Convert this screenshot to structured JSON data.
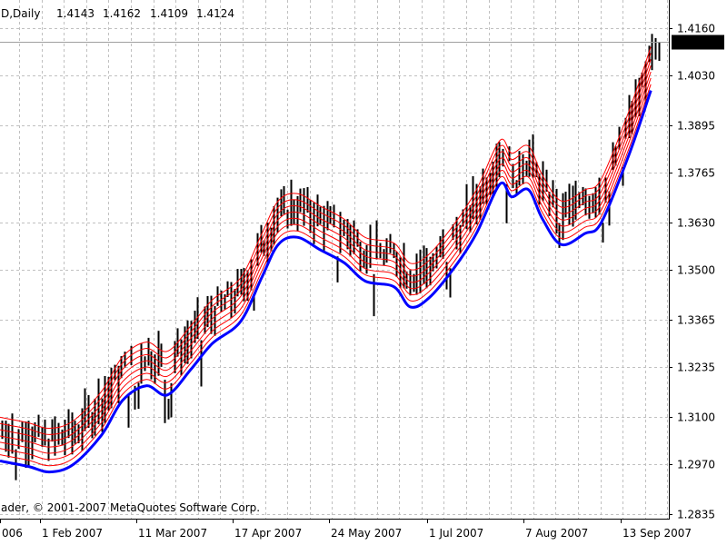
{
  "header": {
    "symbol_period": "D,Daily",
    "open": "1.4143",
    "high": "1.4162",
    "low": "1.4109",
    "close": "1.4124"
  },
  "copyright": "ader, © 2001-2007 MetaQuotes Software Corp.",
  "colors": {
    "background": "#ffffff",
    "grid": "#c0c0c0",
    "bars": "#000000",
    "ma_main": "#0000ff",
    "envelope": "#ff0000",
    "price_line": "#a0a0a0",
    "price_tag_bg": "#000000",
    "price_tag_text": "#ffffff"
  },
  "chart_data": {
    "type": "line",
    "title": "",
    "xlabel": "",
    "ylabel": "",
    "ylim": [
      1.2815,
      1.4185
    ],
    "y_ticks": [
      "1.4160",
      "1.4030",
      "1.3895",
      "1.3765",
      "1.3630",
      "1.3500",
      "1.3365",
      "1.3235",
      "1.3100",
      "1.2970",
      "1.2835"
    ],
    "x_tick_labels": [
      "006",
      "1 Feb 2007",
      "11 Mar 2007",
      "17 Apr 2007",
      "24 May 2007",
      "1 Jul 2007",
      "7 Aug 2007",
      "13 Sep 2007"
    ],
    "current_price": "1.4124",
    "grid": true,
    "series": [
      {
        "style": "thick blue line",
        "points": [
          [
            "20 Dec 2006",
            1.298
          ],
          [
            "1 Jan 2007",
            1.2965
          ],
          [
            "10 Jan 2007",
            1.295
          ],
          [
            "20 Jan 2007",
            1.297
          ],
          [
            "1 Feb 2007",
            1.305
          ],
          [
            "10 Feb 2007",
            1.3145
          ],
          [
            "20 Feb 2007",
            1.3185
          ],
          [
            "1 Mar 2007",
            1.316
          ],
          [
            "11 Mar 2007",
            1.323
          ],
          [
            "20 Mar 2007",
            1.33
          ],
          [
            "1 Apr 2007",
            1.336
          ],
          [
            "10 Apr 2007",
            1.348
          ],
          [
            "17 Apr 2007",
            1.357
          ],
          [
            "25 Apr 2007",
            1.359
          ],
          [
            "5 May 2007",
            1.3555
          ],
          [
            "15 May 2007",
            1.352
          ],
          [
            "24 May 2007",
            1.347
          ],
          [
            "5 Jun 2007",
            1.3455
          ],
          [
            "12 Jun 2007",
            1.34
          ],
          [
            "20 Jun 2007",
            1.3425
          ],
          [
            "1 Jul 2007",
            1.351
          ],
          [
            "10 Jul 2007",
            1.36
          ],
          [
            "20 Jul 2007",
            1.3735
          ],
          [
            "25 Jul 2007",
            1.37
          ],
          [
            "1 Aug 2007",
            1.372
          ],
          [
            "7 Aug 2007",
            1.364
          ],
          [
            "15 Aug 2007",
            1.357
          ],
          [
            "25 Aug 2007",
            1.36
          ],
          [
            "1 Sep 2007",
            1.363
          ],
          [
            "13 Sep 2007",
            1.382
          ],
          [
            "22 Sep 2007",
            1.399
          ]
        ]
      },
      {
        "style": "red envelope lines",
        "offsets_above_blue": [
          0.0017,
          0.0034,
          0.0051,
          0.0068,
          0.0085,
          0.0102,
          0.0119
        ]
      },
      {
        "style": "black OHLC bars",
        "note": "daily price bars following the moving average"
      }
    ]
  }
}
